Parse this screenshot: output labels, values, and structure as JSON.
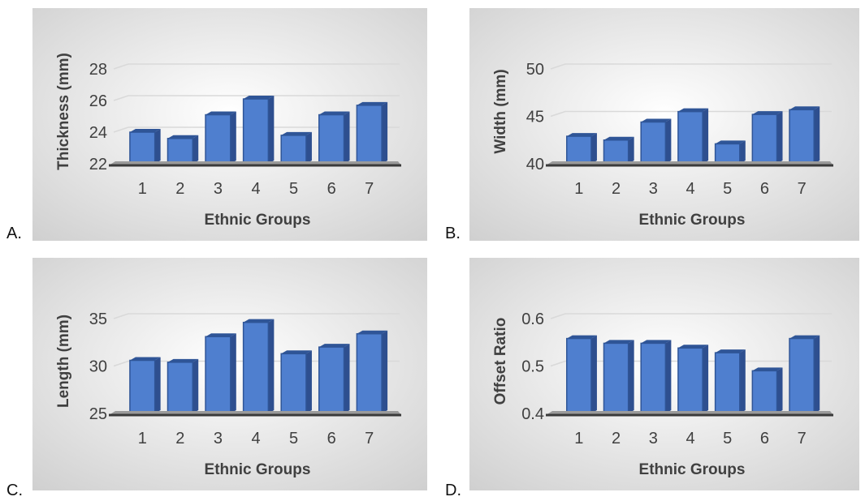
{
  "colors": {
    "bar_front": "#4f7fcf",
    "bar_side": "#2e4f8f",
    "bar_top": "#2f5597",
    "axis": "#3a3a3a",
    "grid": "#d9d9d9",
    "text": "#404040",
    "panel_bg_center": "#ffffff",
    "panel_bg_edge": "#cfcfcf"
  },
  "chart_data": [
    {
      "panel": "A.",
      "type": "bar",
      "categories": [
        "1",
        "2",
        "3",
        "4",
        "5",
        "6",
        "7"
      ],
      "values": [
        24.0,
        23.6,
        25.1,
        26.1,
        23.8,
        25.1,
        25.7
      ],
      "ylabel": "Thickness (mm)",
      "xlabel": "Ethnic Groups",
      "yticks": [
        "22",
        "24",
        "26",
        "28"
      ],
      "ylim": [
        22,
        28
      ],
      "grid": true
    },
    {
      "panel": "B.",
      "type": "bar",
      "categories": [
        "1",
        "2",
        "3",
        "4",
        "5",
        "6",
        "7"
      ],
      "values": [
        42.9,
        42.5,
        44.4,
        45.5,
        42.1,
        45.2,
        45.7
      ],
      "ylabel": "Width (mm)",
      "xlabel": "Ethnic Groups",
      "yticks": [
        "40",
        "45",
        "50"
      ],
      "ylim": [
        40,
        50
      ],
      "grid": true
    },
    {
      "panel": "C.",
      "type": "bar",
      "categories": [
        "1",
        "2",
        "3",
        "4",
        "5",
        "6",
        "7"
      ],
      "values": [
        30.6,
        30.4,
        33.1,
        34.6,
        31.3,
        32.0,
        33.4
      ],
      "ylabel": "Length (mm)",
      "xlabel": "Ethnic Groups",
      "yticks": [
        "25",
        "30",
        "35"
      ],
      "ylim": [
        25,
        35
      ],
      "grid": true
    },
    {
      "panel": "D.",
      "type": "bar",
      "categories": [
        "1",
        "2",
        "3",
        "4",
        "5",
        "6",
        "7"
      ],
      "values": [
        0.558,
        0.548,
        0.548,
        0.538,
        0.528,
        0.49,
        0.558
      ],
      "ylabel": "Offset Ratio",
      "xlabel": "Ethnic Groups",
      "yticks": [
        "0.4",
        "0.5",
        "0.6"
      ],
      "ylim": [
        0.4,
        0.6
      ],
      "grid": true
    }
  ]
}
